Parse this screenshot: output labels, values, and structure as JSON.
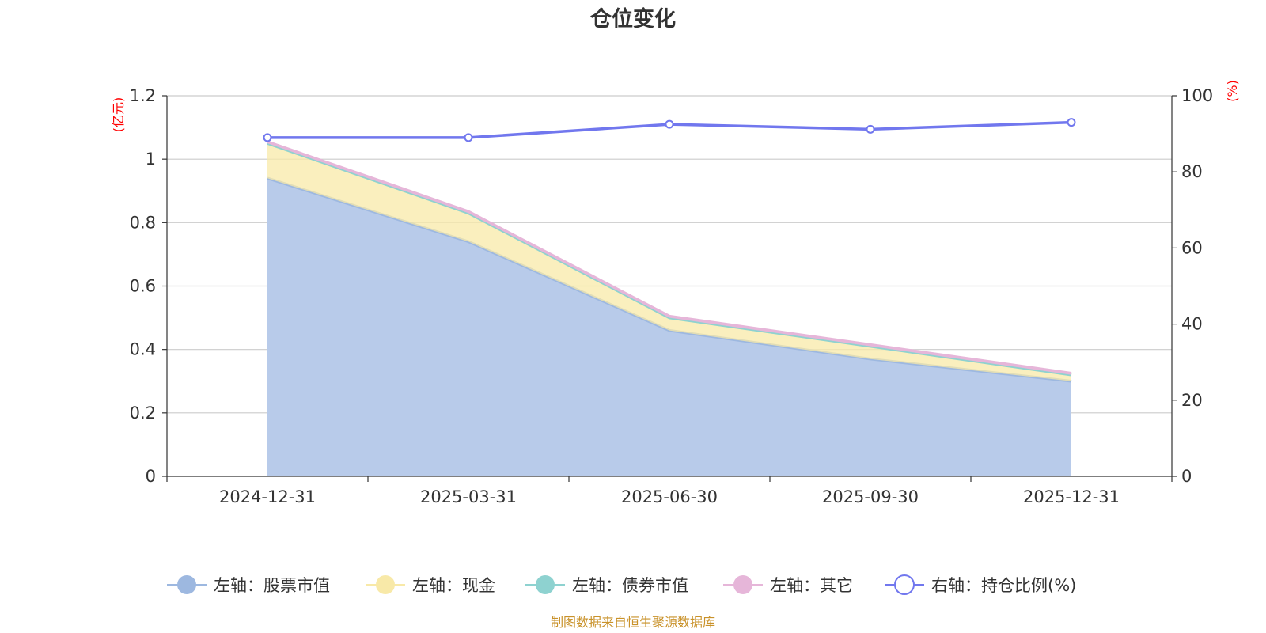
{
  "title": "仓位变化",
  "source_text": "制图数据来自恒生聚源数据库",
  "left_axis_unit": "(亿元)",
  "right_axis_unit": "(%)",
  "chart_data": {
    "type": "area",
    "categories": [
      "2024-12-31",
      "2025-03-31",
      "2025-06-30",
      "2025-09-30",
      "2025-12-31"
    ],
    "left_axis": {
      "min": 0,
      "max": 1.2,
      "ticks": [
        0,
        0.2,
        0.4,
        0.6,
        0.8,
        1,
        1.2
      ],
      "tick_labels": [
        "0",
        "0.2",
        "0.4",
        "0.6",
        "0.8",
        "1",
        "1.2"
      ]
    },
    "right_axis": {
      "min": 0,
      "max": 100,
      "ticks": [
        0,
        20,
        40,
        60,
        80,
        100
      ],
      "tick_labels": [
        "0",
        "20",
        "40",
        "60",
        "80",
        "100"
      ]
    },
    "series": [
      {
        "name": "左轴：股票市值",
        "axis": "left",
        "kind": "stacked-area",
        "color": "#9db8e0",
        "values": [
          0.94,
          0.74,
          0.46,
          0.37,
          0.3
        ]
      },
      {
        "name": "左轴：现金",
        "axis": "left",
        "kind": "stacked-area",
        "color": "#f8e9a8",
        "values": [
          0.11,
          0.09,
          0.04,
          0.04,
          0.02
        ]
      },
      {
        "name": "左轴：债券市值",
        "axis": "left",
        "kind": "stacked-area",
        "color": "#8ed2d0",
        "values": [
          0,
          0,
          0,
          0,
          0
        ]
      },
      {
        "name": "左轴：其它",
        "axis": "left",
        "kind": "stacked-area",
        "color": "#e6b6d9",
        "values": [
          0.005,
          0.005,
          0.005,
          0.005,
          0.005
        ]
      },
      {
        "name": "右轴：持仓比例(%)",
        "axis": "right",
        "kind": "line",
        "color": "#7177ee",
        "values": [
          89.0,
          89.0,
          92.5,
          91.2,
          93.0
        ]
      }
    ]
  }
}
